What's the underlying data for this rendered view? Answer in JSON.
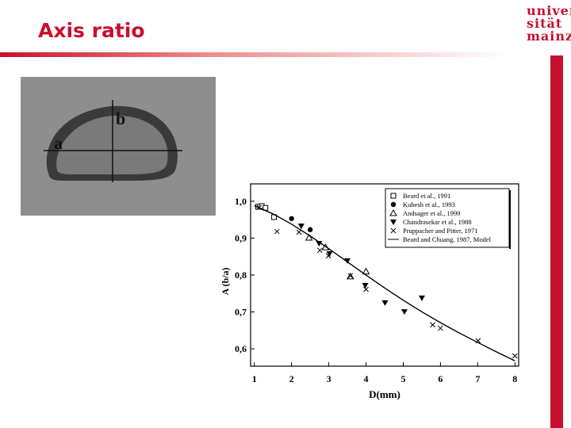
{
  "title": "Axis ratio",
  "logo": [
    "univer",
    "sität",
    "mainz"
  ],
  "photo_labels": [
    "a",
    "b"
  ],
  "chart_data": {
    "type": "scatter",
    "xlabel": "D(mm)",
    "ylabel": "A (b/a)",
    "xlim": [
      0.9,
      8.1
    ],
    "xticks": [
      1,
      2,
      3,
      4,
      5,
      6,
      7,
      8
    ],
    "ylim": [
      0.553,
      1.047
    ],
    "yticks": [
      {
        "value": 0.6,
        "label": "0,6"
      },
      {
        "value": 0.7,
        "label": "0,7"
      },
      {
        "value": 0.8,
        "label": "0,8"
      },
      {
        "value": 0.9,
        "label": "0,9"
      },
      {
        "value": 1.0,
        "label": "1,0"
      }
    ],
    "legend": "upper right",
    "series": [
      {
        "name": "Beard et al., 1991",
        "marker": "square",
        "color": "#000000",
        "x": [
          1.1,
          1.2,
          1.3,
          1.53
        ],
        "values": [
          0.985,
          0.987,
          0.982,
          0.957
        ]
      },
      {
        "name": "Kubesh et al., 1993",
        "marker": "circle",
        "color": "#000000",
        "x": [
          2.0,
          2.5
        ],
        "values": [
          0.953,
          0.923
        ]
      },
      {
        "name": "Andsager et al., 1999",
        "marker": "triangle",
        "color": "#000000",
        "x": [
          2.47,
          2.91,
          3.58,
          4.0
        ],
        "values": [
          0.901,
          0.875,
          0.796,
          0.809
        ]
      },
      {
        "name": "Chandrasekar et al., 1988",
        "marker": "triangle-down",
        "color": "#000000",
        "x": [
          2.26,
          2.74,
          3.02,
          3.5,
          3.98,
          4.51,
          5.03,
          5.5
        ],
        "values": [
          0.933,
          0.886,
          0.858,
          0.839,
          0.772,
          0.725,
          0.701,
          0.738
        ]
      },
      {
        "name": "Pruppacher and Pitter, 1971",
        "marker": "cross",
        "color": "#000000",
        "x": [
          1.13,
          1.61,
          2.2,
          2.76,
          2.99,
          3.58,
          4.0,
          5.79,
          6.0,
          7.01,
          8.0
        ],
        "values": [
          0.983,
          0.918,
          0.916,
          0.867,
          0.852,
          0.798,
          0.761,
          0.665,
          0.656,
          0.622,
          0.581
        ]
      },
      {
        "name": "Beard and Chuang, 1987, Model",
        "marker": "line",
        "color": "#000000",
        "x": [
          1,
          1.5,
          2,
          2.5,
          3,
          3.5,
          4,
          4.5,
          5,
          5.5,
          6,
          6.5,
          7,
          7.5,
          8
        ],
        "values": [
          0.9877,
          0.9658,
          0.9379,
          0.9058,
          0.8712,
          0.8355,
          0.7998,
          0.765,
          0.7317,
          0.7003,
          0.6709,
          0.6433,
          0.6173,
          0.5918,
          0.5676
        ]
      }
    ]
  }
}
